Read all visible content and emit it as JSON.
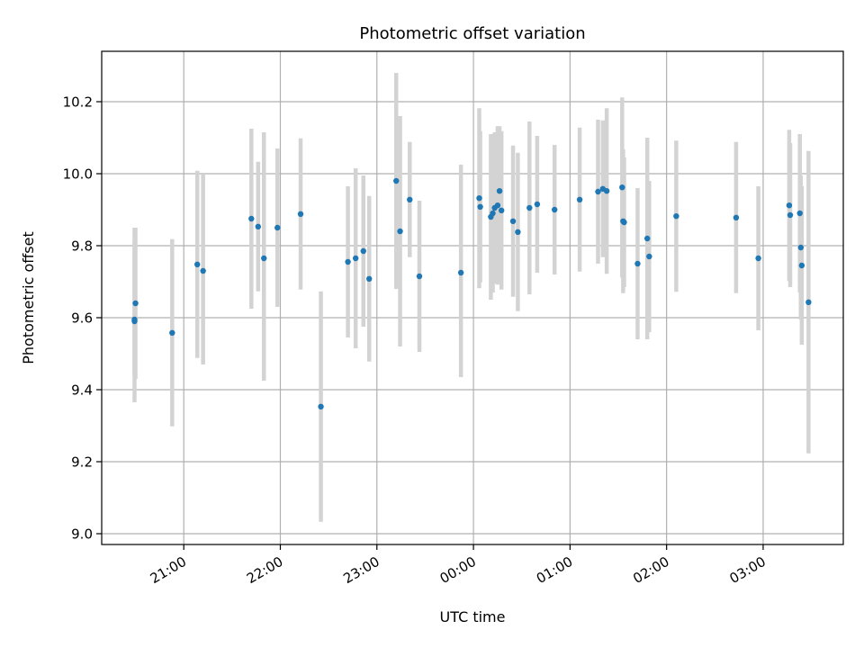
{
  "chart_data": {
    "type": "scatter",
    "title": "Photometric offset variation",
    "xlabel": "UTC time",
    "ylabel": "Photometric offset",
    "x_unit": "hours past 00:00 UTC",
    "xlim": [
      -3.85,
      3.83
    ],
    "ylim": [
      8.97,
      10.34
    ],
    "x_ticks": [
      -3,
      -2,
      -1,
      0,
      1,
      2,
      3
    ],
    "x_tick_labels": [
      "21:00",
      "22:00",
      "23:00",
      "00:00",
      "01:00",
      "02:00",
      "03:00"
    ],
    "y_ticks": [
      9.0,
      9.2,
      9.4,
      9.6,
      9.8,
      10.0,
      10.2
    ],
    "y_tick_labels": [
      "9.0",
      "9.2",
      "9.4",
      "9.6",
      "9.8",
      "10.0",
      "10.2"
    ],
    "grid": true,
    "point_color": "#1f77b4",
    "errorbar_color": "#d3d3d3",
    "points": [
      {
        "x": -3.5,
        "y": 9.64,
        "err_lo": 0.21,
        "err_hi": 0.21
      },
      {
        "x": -3.51,
        "y": 9.595,
        "err_lo": 0.23,
        "err_hi": 0.22
      },
      {
        "x": -3.51,
        "y": 9.59,
        "err_lo": 0.15,
        "err_hi": 0.26
      },
      {
        "x": -3.12,
        "y": 9.558,
        "err_lo": 0.26,
        "err_hi": 0.26
      },
      {
        "x": -2.86,
        "y": 9.748,
        "err_lo": 0.26,
        "err_hi": 0.26
      },
      {
        "x": -2.8,
        "y": 9.73,
        "err_lo": 0.26,
        "err_hi": 0.27
      },
      {
        "x": -2.3,
        "y": 9.875,
        "err_lo": 0.25,
        "err_hi": 0.25
      },
      {
        "x": -2.23,
        "y": 9.853,
        "err_lo": 0.18,
        "err_hi": 0.18
      },
      {
        "x": -2.17,
        "y": 9.765,
        "err_lo": 0.34,
        "err_hi": 0.35
      },
      {
        "x": -2.03,
        "y": 9.85,
        "err_lo": 0.22,
        "err_hi": 0.22
      },
      {
        "x": -1.79,
        "y": 9.888,
        "err_lo": 0.21,
        "err_hi": 0.21
      },
      {
        "x": -1.58,
        "y": 9.353,
        "err_lo": 0.32,
        "err_hi": 0.32
      },
      {
        "x": -1.3,
        "y": 9.755,
        "err_lo": 0.21,
        "err_hi": 0.21
      },
      {
        "x": -1.22,
        "y": 9.765,
        "err_lo": 0.25,
        "err_hi": 0.25
      },
      {
        "x": -1.14,
        "y": 9.785,
        "err_lo": 0.21,
        "err_hi": 0.21
      },
      {
        "x": -1.08,
        "y": 9.708,
        "err_lo": 0.23,
        "err_hi": 0.23
      },
      {
        "x": -0.8,
        "y": 9.98,
        "err_lo": 0.3,
        "err_hi": 0.3
      },
      {
        "x": -0.76,
        "y": 9.84,
        "err_lo": 0.32,
        "err_hi": 0.32
      },
      {
        "x": -0.66,
        "y": 9.928,
        "err_lo": 0.16,
        "err_hi": 0.16
      },
      {
        "x": -0.56,
        "y": 9.715,
        "err_lo": 0.21,
        "err_hi": 0.21
      },
      {
        "x": -0.13,
        "y": 9.725,
        "err_lo": 0.29,
        "err_hi": 0.3
      },
      {
        "x": 0.06,
        "y": 9.932,
        "err_lo": 0.25,
        "err_hi": 0.25
      },
      {
        "x": 0.07,
        "y": 9.908,
        "err_lo": 0.21,
        "err_hi": 0.21
      },
      {
        "x": 0.18,
        "y": 9.88,
        "err_lo": 0.23,
        "err_hi": 0.23
      },
      {
        "x": 0.2,
        "y": 9.89,
        "err_lo": 0.22,
        "err_hi": 0.22
      },
      {
        "x": 0.22,
        "y": 9.905,
        "err_lo": 0.21,
        "err_hi": 0.21
      },
      {
        "x": 0.25,
        "y": 9.912,
        "err_lo": 0.22,
        "err_hi": 0.22
      },
      {
        "x": 0.27,
        "y": 9.952,
        "err_lo": 0.18,
        "err_hi": 0.18
      },
      {
        "x": 0.29,
        "y": 9.898,
        "err_lo": 0.22,
        "err_hi": 0.22
      },
      {
        "x": 0.41,
        "y": 9.868,
        "err_lo": 0.21,
        "err_hi": 0.21
      },
      {
        "x": 0.46,
        "y": 9.838,
        "err_lo": 0.22,
        "err_hi": 0.22
      },
      {
        "x": 0.58,
        "y": 9.905,
        "err_lo": 0.24,
        "err_hi": 0.24
      },
      {
        "x": 0.66,
        "y": 9.915,
        "err_lo": 0.19,
        "err_hi": 0.19
      },
      {
        "x": 0.84,
        "y": 9.9,
        "err_lo": 0.18,
        "err_hi": 0.18
      },
      {
        "x": 1.1,
        "y": 9.928,
        "err_lo": 0.2,
        "err_hi": 0.2
      },
      {
        "x": 1.29,
        "y": 9.95,
        "err_lo": 0.2,
        "err_hi": 0.2
      },
      {
        "x": 1.34,
        "y": 9.958,
        "err_lo": 0.19,
        "err_hi": 0.19
      },
      {
        "x": 1.38,
        "y": 9.952,
        "err_lo": 0.23,
        "err_hi": 0.23
      },
      {
        "x": 1.54,
        "y": 9.962,
        "err_lo": 0.25,
        "err_hi": 0.25
      },
      {
        "x": 1.55,
        "y": 9.868,
        "err_lo": 0.2,
        "err_hi": 0.2
      },
      {
        "x": 1.56,
        "y": 9.865,
        "err_lo": 0.18,
        "err_hi": 0.18
      },
      {
        "x": 1.7,
        "y": 9.75,
        "err_lo": 0.21,
        "err_hi": 0.21
      },
      {
        "x": 1.8,
        "y": 9.82,
        "err_lo": 0.28,
        "err_hi": 0.28
      },
      {
        "x": 1.82,
        "y": 9.77,
        "err_lo": 0.21,
        "err_hi": 0.21
      },
      {
        "x": 2.1,
        "y": 9.882,
        "err_lo": 0.21,
        "err_hi": 0.21
      },
      {
        "x": 2.72,
        "y": 9.878,
        "err_lo": 0.21,
        "err_hi": 0.21
      },
      {
        "x": 2.95,
        "y": 9.765,
        "err_lo": 0.2,
        "err_hi": 0.2
      },
      {
        "x": 3.27,
        "y": 9.912,
        "err_lo": 0.21,
        "err_hi": 0.21
      },
      {
        "x": 3.28,
        "y": 9.885,
        "err_lo": 0.2,
        "err_hi": 0.2
      },
      {
        "x": 3.38,
        "y": 9.89,
        "err_lo": 0.22,
        "err_hi": 0.22
      },
      {
        "x": 3.39,
        "y": 9.795,
        "err_lo": 0.2,
        "err_hi": 0.2
      },
      {
        "x": 3.4,
        "y": 9.745,
        "err_lo": 0.22,
        "err_hi": 0.22
      },
      {
        "x": 3.47,
        "y": 9.643,
        "err_lo": 0.42,
        "err_hi": 0.42
      }
    ]
  }
}
